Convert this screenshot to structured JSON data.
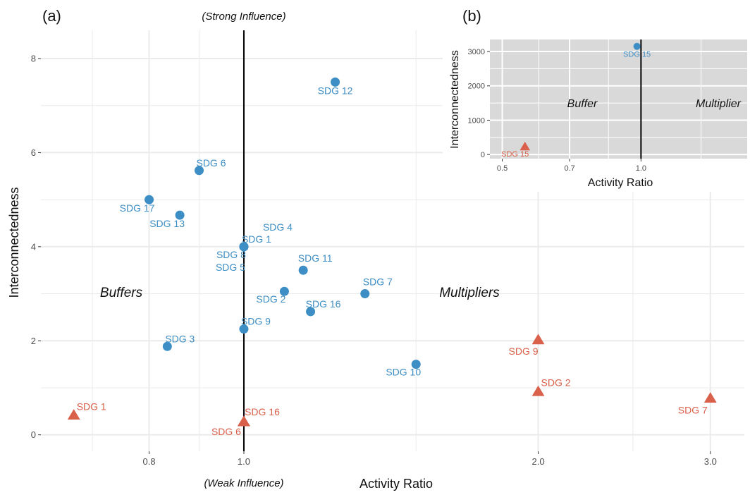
{
  "chart_data": [
    {
      "panel_label": "(a)",
      "type": "scatter",
      "xlabel": "Activity Ratio",
      "ylabel": "Interconnectedness",
      "x_scale": "log",
      "xlim": [
        0.62,
        3.25
      ],
      "ylim": [
        -0.35,
        8.6
      ],
      "x_ticks": [
        {
          "value": 0.8,
          "label": "0.8"
        },
        {
          "value": 1.0,
          "label": "1.0"
        },
        {
          "value": 2.0,
          "label": "2.0"
        },
        {
          "value": 3.0,
          "label": "3.0"
        }
      ],
      "x_minor_grid": [
        0.7,
        0.9,
        1.5,
        2.5
      ],
      "y_ticks": [
        {
          "value": 0,
          "label": "0"
        },
        {
          "value": 2,
          "label": "2"
        },
        {
          "value": 4,
          "label": "4"
        },
        {
          "value": 6,
          "label": "6"
        },
        {
          "value": 8,
          "label": "8"
        }
      ],
      "y_minor_grid": [
        1,
        3,
        5,
        7
      ],
      "reference_line_x": 1.0,
      "annotations": {
        "top": "(Strong Influence)",
        "bottom": "(Weak Influence)",
        "left": "Buffers",
        "right": "Multipliers"
      },
      "series": [
        {
          "color": "#3d8ec4",
          "marker": "circle",
          "points": [
            {
              "label": "SDG 12",
              "x": 1.24,
              "y": 7.5
            },
            {
              "label": "SDG 6",
              "x": 0.9,
              "y": 5.62
            },
            {
              "label": "SDG 17",
              "x": 0.8,
              "y": 5.0
            },
            {
              "label": "SDG 13",
              "x": 0.86,
              "y": 4.67
            },
            {
              "label": "SDG 4",
              "x": 1.0,
              "y": 4.0
            },
            {
              "label": "SDG 1",
              "x": 1.0,
              "y": 4.0
            },
            {
              "label": "SDG 8",
              "x": 1.0,
              "y": 4.0
            },
            {
              "label": "SDG 5",
              "x": 1.0,
              "y": 4.0
            },
            {
              "label": "SDG 11",
              "x": 1.15,
              "y": 3.5
            },
            {
              "label": "SDG 7",
              "x": 1.33,
              "y": 3.0
            },
            {
              "label": "SDG 2",
              "x": 1.1,
              "y": 3.05
            },
            {
              "label": "SDG 16",
              "x": 1.17,
              "y": 2.62
            },
            {
              "label": "SDG 9",
              "x": 1.0,
              "y": 2.25
            },
            {
              "label": "SDG 3",
              "x": 0.835,
              "y": 1.88
            },
            {
              "label": "SDG 10",
              "x": 1.5,
              "y": 1.5
            }
          ]
        },
        {
          "color": "#d9604a",
          "marker": "triangle",
          "points": [
            {
              "label": "SDG 1",
              "x": 0.67,
              "y": 0.42
            },
            {
              "label": "SDG 16",
              "x": 1.0,
              "y": 0.28
            },
            {
              "label": "SDG 6",
              "x": 1.0,
              "y": 0.28
            },
            {
              "label": "SDG 9",
              "x": 2.0,
              "y": 2.02
            },
            {
              "label": "SDG 2",
              "x": 2.0,
              "y": 0.92
            },
            {
              "label": "SDG 7",
              "x": 3.0,
              "y": 0.78
            }
          ]
        }
      ]
    },
    {
      "panel_label": "(b)",
      "type": "scatter",
      "xlabel": "Activity Ratio",
      "ylabel": "Interconnectedness",
      "x_scale": "log",
      "xlim": [
        0.47,
        1.7
      ],
      "ylim": [
        -120,
        3350
      ],
      "panel_background": "#d9d9d9",
      "x_ticks": [
        {
          "value": 0.5,
          "label": "0.5"
        },
        {
          "value": 0.7,
          "label": "0.7"
        },
        {
          "value": 1.0,
          "label": "1.0"
        }
      ],
      "x_minor_grid": [
        0.6,
        0.85,
        1.35
      ],
      "y_ticks": [
        {
          "value": 0,
          "label": "0"
        },
        {
          "value": 1000,
          "label": "1000"
        },
        {
          "value": 2000,
          "label": "2000"
        },
        {
          "value": 3000,
          "label": "3000"
        }
      ],
      "y_minor_grid": [
        500,
        1500,
        2500
      ],
      "reference_line_x": 1.0,
      "annotations": {
        "left": "Buffer",
        "right": "Multiplier"
      },
      "series": [
        {
          "color": "#3d8ec4",
          "marker": "circle",
          "points": [
            {
              "label": "SDG 15",
              "x": 0.98,
              "y": 3150
            }
          ]
        },
        {
          "color": "#d9604a",
          "marker": "triangle",
          "points": [
            {
              "label": "SDG 15",
              "x": 0.56,
              "y": 230
            }
          ]
        }
      ]
    }
  ]
}
